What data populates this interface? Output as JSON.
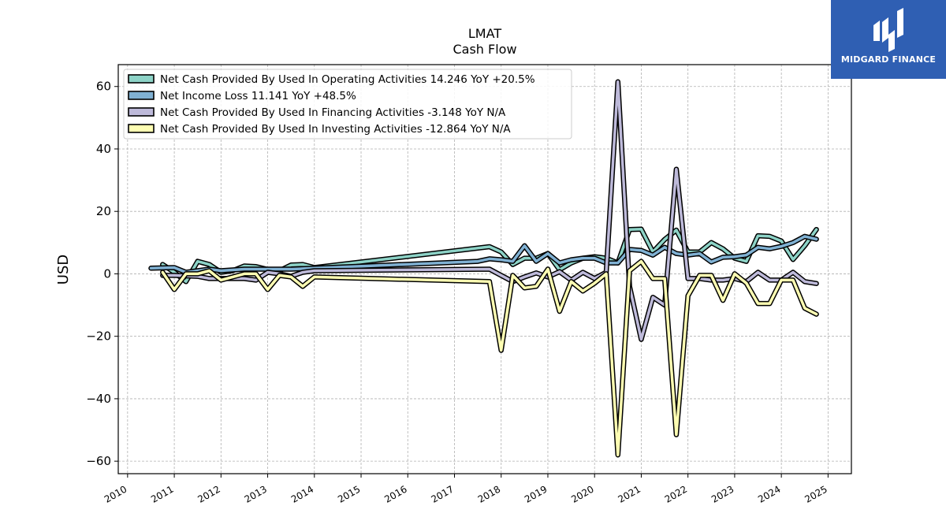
{
  "chart_data": {
    "type": "line",
    "title": "LMAT",
    "subtitle": "Cash Flow",
    "xlabel": "",
    "ylabel": "USD",
    "xlim": [
      2009.8,
      2025.5
    ],
    "ylim": [
      -64,
      67
    ],
    "x_ticks": [
      "2010",
      "2011",
      "2012",
      "2013",
      "2014",
      "2015",
      "2016",
      "2017",
      "2018",
      "2019",
      "2020",
      "2021",
      "2022",
      "2023",
      "2024",
      "2025"
    ],
    "y_ticks": [
      60,
      40,
      20,
      0,
      -20,
      -40,
      -60
    ],
    "y_tick_labels": [
      "60",
      "40",
      "20",
      "0",
      "−20",
      "−40",
      "−60"
    ],
    "grid": true,
    "legend_position": "top-left",
    "series": [
      {
        "name": "Net Cash Provided By Used In Operating Activities",
        "legend_label": "Net Cash Provided By Used In Operating Activities  14.246 YoY +20.5%",
        "color": "#8dd3c7",
        "points": [
          [
            2010.75,
            3
          ],
          [
            2011.0,
            0.5
          ],
          [
            2011.25,
            -2.5
          ],
          [
            2011.5,
            4
          ],
          [
            2011.75,
            3
          ],
          [
            2012.0,
            0.5
          ],
          [
            2012.25,
            1
          ],
          [
            2012.5,
            2.5
          ],
          [
            2012.75,
            2.3
          ],
          [
            2013.0,
            1.4
          ],
          [
            2013.25,
            1
          ],
          [
            2013.5,
            2.8
          ],
          [
            2013.75,
            3
          ],
          [
            2014.0,
            2
          ],
          [
            2017.75,
            8.7
          ],
          [
            2018.0,
            7
          ],
          [
            2018.25,
            3
          ],
          [
            2018.5,
            5
          ],
          [
            2018.75,
            5
          ],
          [
            2019.0,
            6.5
          ],
          [
            2019.25,
            1.3
          ],
          [
            2019.5,
            3.5
          ],
          [
            2019.75,
            5
          ],
          [
            2020.0,
            5.5
          ],
          [
            2020.25,
            5
          ],
          [
            2020.5,
            3.5
          ],
          [
            2020.75,
            14.2
          ],
          [
            2021.0,
            14.3
          ],
          [
            2021.25,
            7
          ],
          [
            2021.5,
            11
          ],
          [
            2021.75,
            14
          ],
          [
            2022.0,
            7
          ],
          [
            2022.25,
            7
          ],
          [
            2022.5,
            10
          ],
          [
            2022.75,
            8
          ],
          [
            2023.0,
            5
          ],
          [
            2023.25,
            4
          ],
          [
            2023.5,
            12.2
          ],
          [
            2023.75,
            12
          ],
          [
            2024.0,
            10.5
          ],
          [
            2024.25,
            4.6
          ],
          [
            2024.5,
            9
          ],
          [
            2024.75,
            14.2
          ]
        ]
      },
      {
        "name": "Net Income Loss",
        "legend_label": "Net Income Loss  11.141 YoY +48.5%",
        "color": "#80b1d3",
        "points": [
          [
            2010.5,
            1.8
          ],
          [
            2011.0,
            2
          ],
          [
            2011.25,
            0.5
          ],
          [
            2011.5,
            1
          ],
          [
            2011.75,
            1.5
          ],
          [
            2012.0,
            1
          ],
          [
            2012.5,
            1.5
          ],
          [
            2013.0,
            1.5
          ],
          [
            2013.5,
            1.5
          ],
          [
            2014.0,
            1.8
          ],
          [
            2017.5,
            4
          ],
          [
            2017.75,
            4.8
          ],
          [
            2018.0,
            4.5
          ],
          [
            2018.25,
            4
          ],
          [
            2018.5,
            9
          ],
          [
            2018.75,
            4
          ],
          [
            2019.0,
            6.5
          ],
          [
            2019.25,
            3.5
          ],
          [
            2019.5,
            4.5
          ],
          [
            2019.75,
            5
          ],
          [
            2020.0,
            5
          ],
          [
            2020.25,
            3.5
          ],
          [
            2020.5,
            3.5
          ],
          [
            2020.75,
            7.8
          ],
          [
            2021.0,
            7.5
          ],
          [
            2021.25,
            6
          ],
          [
            2021.5,
            8.5
          ],
          [
            2021.75,
            6.5
          ],
          [
            2022.0,
            6
          ],
          [
            2022.25,
            6.5
          ],
          [
            2022.5,
            3.8
          ],
          [
            2022.75,
            5.3
          ],
          [
            2023.0,
            5.5
          ],
          [
            2023.25,
            6
          ],
          [
            2023.5,
            8.5
          ],
          [
            2023.75,
            8
          ],
          [
            2024.0,
            8.8
          ],
          [
            2024.25,
            10
          ],
          [
            2024.5,
            12
          ],
          [
            2024.75,
            11.1
          ]
        ]
      },
      {
        "name": "Net Cash Provided By Used In Financing Activities",
        "legend_label": "Net Cash Provided By Used In Financing Activities  -3.148 YoY N/A",
        "color": "#bebada",
        "points": [
          [
            2010.75,
            -0.5
          ],
          [
            2011.0,
            -0.5
          ],
          [
            2011.5,
            -0.8
          ],
          [
            2011.75,
            -1.5
          ],
          [
            2012.0,
            -1.5
          ],
          [
            2012.5,
            -1.5
          ],
          [
            2012.75,
            -2
          ],
          [
            2013.0,
            0.5
          ],
          [
            2013.25,
            0
          ],
          [
            2013.5,
            -0.8
          ],
          [
            2013.75,
            0.5
          ],
          [
            2014.0,
            1
          ],
          [
            2017.75,
            1.5
          ],
          [
            2018.0,
            -0.5
          ],
          [
            2018.25,
            -2.5
          ],
          [
            2018.5,
            -1
          ],
          [
            2018.75,
            0.3
          ],
          [
            2019.0,
            -1
          ],
          [
            2019.25,
            0.7
          ],
          [
            2019.5,
            -2
          ],
          [
            2019.75,
            0.5
          ],
          [
            2020.0,
            -1.5
          ],
          [
            2020.25,
            0.5
          ],
          [
            2020.5,
            61.5
          ],
          [
            2020.75,
            -4
          ],
          [
            2021.0,
            -21
          ],
          [
            2021.25,
            -7.5
          ],
          [
            2021.5,
            -10
          ],
          [
            2021.75,
            33.5
          ],
          [
            2022.0,
            -1.5
          ],
          [
            2022.25,
            -1.5
          ],
          [
            2022.5,
            -2
          ],
          [
            2022.75,
            -2
          ],
          [
            2023.0,
            -1.5
          ],
          [
            2023.25,
            -2.5
          ],
          [
            2023.5,
            0.5
          ],
          [
            2023.75,
            -2
          ],
          [
            2024.0,
            -2
          ],
          [
            2024.25,
            0.5
          ],
          [
            2024.5,
            -2.5
          ],
          [
            2024.75,
            -3.1
          ]
        ]
      },
      {
        "name": "Net Cash Provided By Used In Investing Activities",
        "legend_label": "Net Cash Provided By Used In Investing Activities  -12.864 YoY N/A",
        "color": "#ffffb3",
        "points": [
          [
            2010.75,
            0.5
          ],
          [
            2011.0,
            -5
          ],
          [
            2011.25,
            0
          ],
          [
            2011.5,
            0
          ],
          [
            2011.75,
            1
          ],
          [
            2012.0,
            -2
          ],
          [
            2012.5,
            0
          ],
          [
            2012.75,
            0
          ],
          [
            2013.0,
            -5
          ],
          [
            2013.25,
            -0.5
          ],
          [
            2013.5,
            -1
          ],
          [
            2013.75,
            -4
          ],
          [
            2014.0,
            -1
          ],
          [
            2017.75,
            -2.5
          ],
          [
            2018.0,
            -24.5
          ],
          [
            2018.25,
            -0.5
          ],
          [
            2018.5,
            -4.5
          ],
          [
            2018.75,
            -4
          ],
          [
            2019.0,
            1.5
          ],
          [
            2019.25,
            -12
          ],
          [
            2019.5,
            -2.5
          ],
          [
            2019.75,
            -5.5
          ],
          [
            2020.0,
            -3
          ],
          [
            2020.25,
            0
          ],
          [
            2020.5,
            -58
          ],
          [
            2020.75,
            1
          ],
          [
            2021.0,
            4
          ],
          [
            2021.25,
            -1.5
          ],
          [
            2021.5,
            -1.5
          ],
          [
            2021.75,
            -51.5
          ],
          [
            2022.0,
            -7
          ],
          [
            2022.25,
            -0.5
          ],
          [
            2022.5,
            -0.5
          ],
          [
            2022.75,
            -8.5
          ],
          [
            2023.0,
            0
          ],
          [
            2023.25,
            -3
          ],
          [
            2023.5,
            -9.5
          ],
          [
            2023.75,
            -9.5
          ],
          [
            2024.0,
            -2
          ],
          [
            2024.25,
            -2
          ],
          [
            2024.5,
            -11
          ],
          [
            2024.75,
            -12.9
          ]
        ]
      }
    ]
  },
  "brand": {
    "name": "MIDGARD FINANCE",
    "icon": "midgard-logo-icon",
    "color": "#2f5fb3"
  }
}
